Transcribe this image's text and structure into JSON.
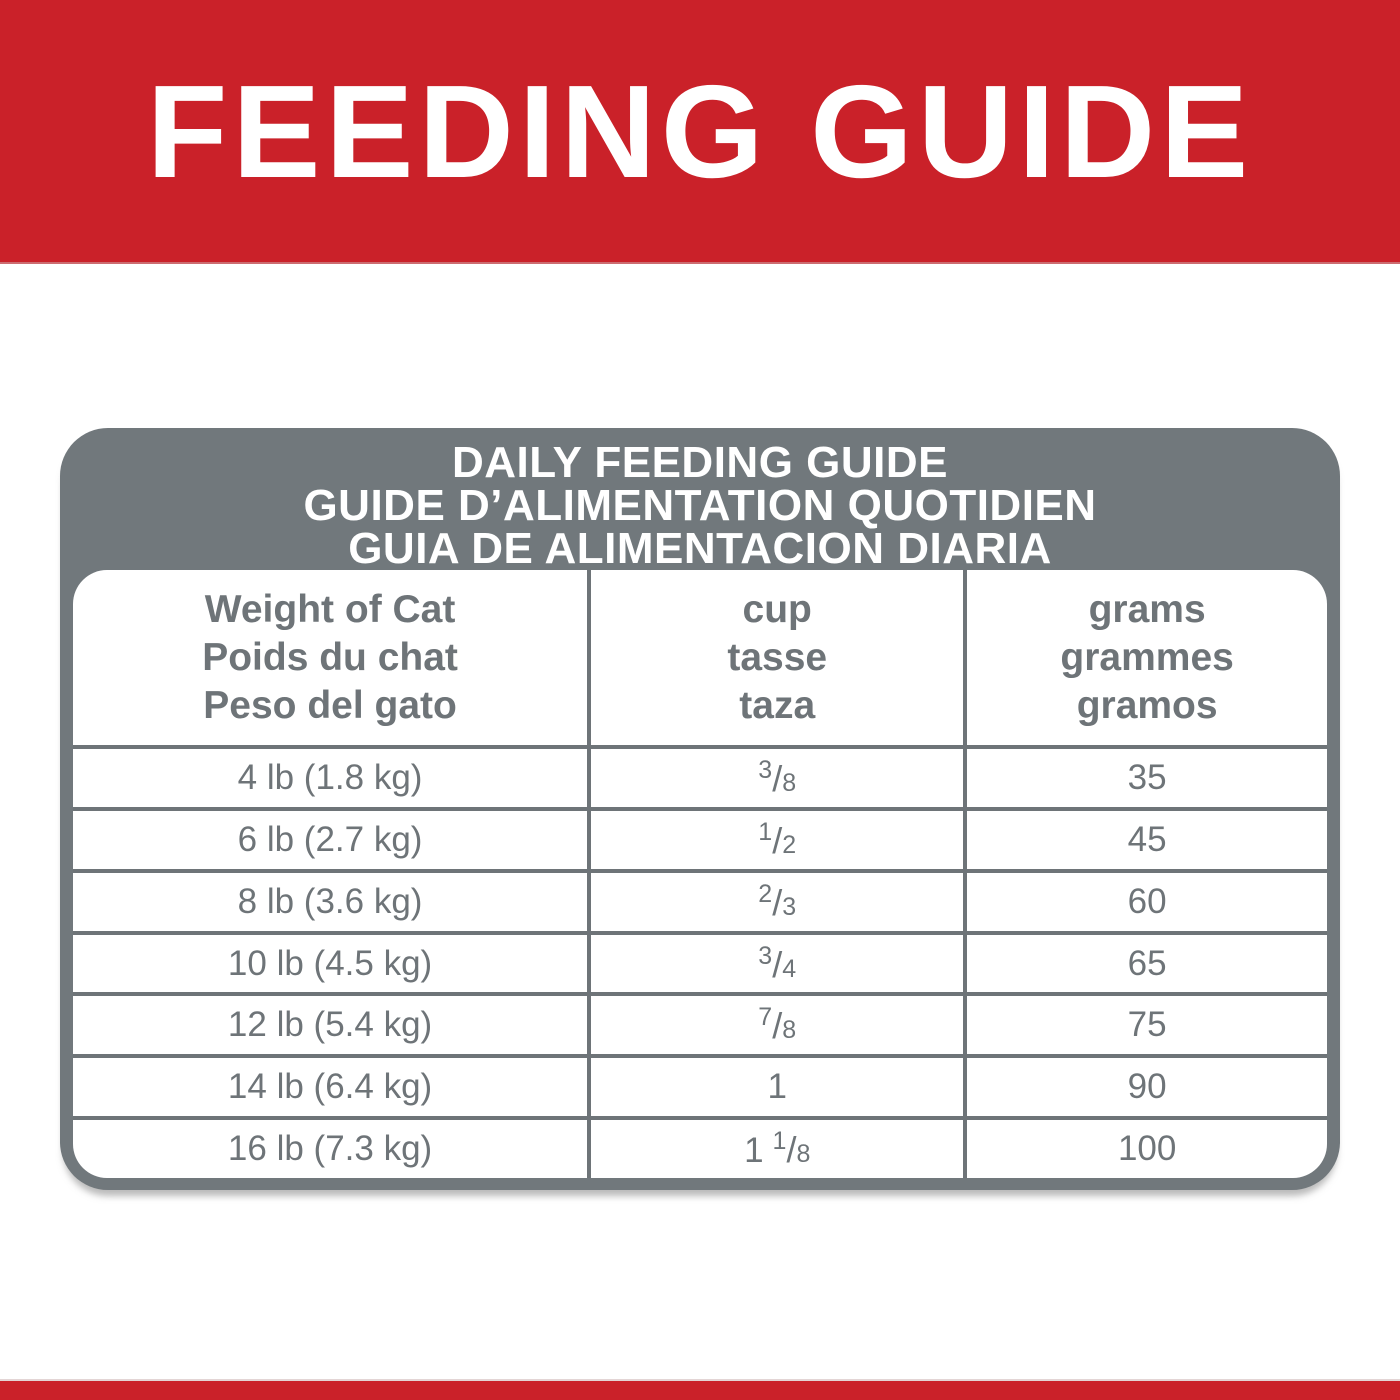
{
  "colors": {
    "banner_red": "#CA2129",
    "panel_gray": "#71787C",
    "divider_gray": "#6E7478",
    "text_gray": "#6E7478",
    "table_bg": "#FFFFFF"
  },
  "banner": {
    "title": "FEEDING GUIDE"
  },
  "guide": {
    "title_lines": [
      "DAILY FEEDING GUIDE",
      "GUIDE D’ALIMENTATION QUOTIDIEN",
      "GUIA DE ALIMENTACION DIARIA"
    ],
    "columns": [
      {
        "id": "weight",
        "lines": [
          "Weight of Cat",
          "Poids du chat",
          "Peso del gato"
        ]
      },
      {
        "id": "cup",
        "lines": [
          "cup",
          "tasse",
          "taza"
        ]
      },
      {
        "id": "grams",
        "lines": [
          "grams",
          "grammes",
          "gramos"
        ]
      }
    ],
    "rows": [
      {
        "weight": "4 lb (1.8 kg)",
        "cup": {
          "whole": "",
          "num": "3",
          "den": "8"
        },
        "grams": "35"
      },
      {
        "weight": "6 lb (2.7 kg)",
        "cup": {
          "whole": "",
          "num": "1",
          "den": "2"
        },
        "grams": "45"
      },
      {
        "weight": "8 lb (3.6 kg)",
        "cup": {
          "whole": "",
          "num": "2",
          "den": "3"
        },
        "grams": "60"
      },
      {
        "weight": "10 lb (4.5 kg)",
        "cup": {
          "whole": "",
          "num": "3",
          "den": "4"
        },
        "grams": "65"
      },
      {
        "weight": "12 lb (5.4 kg)",
        "cup": {
          "whole": "",
          "num": "7",
          "den": "8"
        },
        "grams": "75"
      },
      {
        "weight": "14 lb (6.4 kg)",
        "cup": {
          "whole": "1",
          "num": "",
          "den": ""
        },
        "grams": "90"
      },
      {
        "weight": "16 lb (7.3 kg)",
        "cup": {
          "whole": "1",
          "num": "1",
          "den": "8"
        },
        "grams": "100"
      }
    ]
  }
}
